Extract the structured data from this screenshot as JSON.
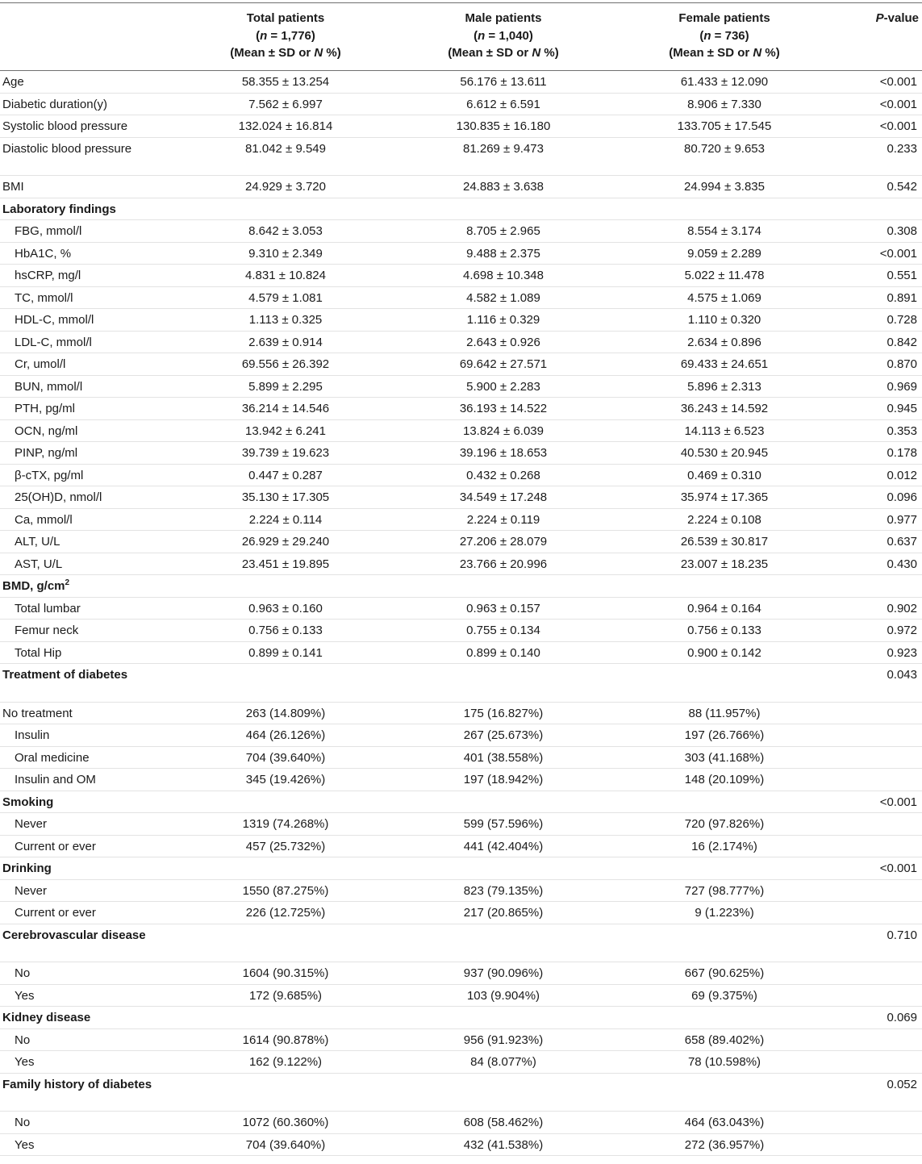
{
  "header": {
    "col0": "",
    "total": {
      "title": "Total patients",
      "n_prefix": "n",
      "n_value": " = 1,776)",
      "stat": "(Mean ± SD or ",
      "stat_n": "N",
      "stat_end": " %)"
    },
    "male": {
      "title": "Male patients",
      "n_prefix": "n",
      "n_value": " = 1,040)",
      "stat": "(Mean ± SD or ",
      "stat_n": "N",
      "stat_end": " %)"
    },
    "female": {
      "title": "Female patients",
      "n_prefix": "n",
      "n_value": " = 736)",
      "stat": "(Mean ± SD or ",
      "stat_n": "N",
      "stat_end": " %)"
    },
    "p_italic": "P",
    "p_rest": "-value"
  },
  "rows": [
    {
      "label": "Age",
      "total": "58.355 ± 13.254",
      "male": "56.176 ± 13.611",
      "female": "61.433 ± 12.090",
      "p": "<0.001",
      "type": "plain",
      "h": 27.5
    },
    {
      "label": "Diabetic duration(y)",
      "total": "7.562 ± 6.997",
      "male": "6.612 ± 6.591",
      "female": "8.906 ± 7.330",
      "p": "<0.001",
      "type": "plain",
      "h": 27.5
    },
    {
      "label": "Systolic blood pressure",
      "total": "132.024 ± 16.814",
      "male": "130.835 ± 16.180",
      "female": "133.705 ± 17.545",
      "p": "<0.001",
      "type": "plain",
      "h": 27.5
    },
    {
      "label": "Diastolic blood pressure",
      "total": "81.042 ± 9.549",
      "male": "81.269 ± 9.473",
      "female": "80.720 ± 9.653",
      "p": "0.233",
      "type": "plain",
      "h": 47.5
    },
    {
      "label": "BMI",
      "total": "24.929 ± 3.720",
      "male": "24.883 ± 3.638",
      "female": "24.994 ± 3.835",
      "p": "0.542",
      "type": "plain",
      "h": 27.5
    },
    {
      "label": "Laboratory findings",
      "total": "",
      "male": "",
      "female": "",
      "p": "",
      "type": "section",
      "h": 27.5
    },
    {
      "label": "FBG, mmol/l",
      "total": "8.642 ± 3.053",
      "male": "8.705 ± 2.965",
      "female": "8.554 ± 3.174",
      "p": "0.308",
      "type": "sub",
      "h": 27.5
    },
    {
      "label": "HbA1C, %",
      "total": "9.310 ± 2.349",
      "male": "9.488 ± 2.375",
      "female": "9.059 ± 2.289",
      "p": "<0.001",
      "type": "sub",
      "h": 27.5
    },
    {
      "label": "hsCRP, mg/l",
      "total": "4.831 ± 10.824",
      "male": "4.698 ± 10.348",
      "female": "5.022 ± 11.478",
      "p": "0.551",
      "type": "sub",
      "h": 27.5
    },
    {
      "label": "TC, mmol/l",
      "total": "4.579 ± 1.081",
      "male": "4.582 ± 1.089",
      "female": "4.575 ± 1.069",
      "p": "0.891",
      "type": "sub",
      "h": 27.5
    },
    {
      "label": "HDL-C, mmol/l",
      "total": "1.113 ± 0.325",
      "male": "1.116 ± 0.329",
      "female": "1.110 ± 0.320",
      "p": "0.728",
      "type": "sub",
      "h": 27.5
    },
    {
      "label": "LDL-C, mmol/l",
      "total": "2.639 ± 0.914",
      "male": "2.643 ± 0.926",
      "female": "2.634 ± 0.896",
      "p": "0.842",
      "type": "sub",
      "h": 27.5
    },
    {
      "label": "Cr, umol/l",
      "total": "69.556 ± 26.392",
      "male": "69.642 ± 27.571",
      "female": "69.433 ± 24.651",
      "p": "0.870",
      "type": "sub",
      "h": 27.5
    },
    {
      "label": "BUN, mmol/l",
      "total": "5.899 ± 2.295",
      "male": "5.900 ± 2.283",
      "female": "5.896 ± 2.313",
      "p": "0.969",
      "type": "sub",
      "h": 27.5
    },
    {
      "label": "PTH, pg/ml",
      "total": "36.214 ± 14.546",
      "male": "36.193 ± 14.522",
      "female": "36.243 ± 14.592",
      "p": "0.945",
      "type": "sub",
      "h": 27.5
    },
    {
      "label": "OCN, ng/ml",
      "total": "13.942 ± 6.241",
      "male": "13.824 ± 6.039",
      "female": "14.113 ± 6.523",
      "p": "0.353",
      "type": "sub",
      "h": 27.5
    },
    {
      "label": "PINP, ng/ml",
      "total": "39.739 ± 19.623",
      "male": "39.196 ± 18.653",
      "female": "40.530 ± 20.945",
      "p": "0.178",
      "type": "sub",
      "h": 27.5
    },
    {
      "label": "β-cTX, pg/ml",
      "total": "0.447 ± 0.287",
      "male": "0.432 ± 0.268",
      "female": "0.469 ± 0.310",
      "p": "0.012",
      "type": "sub",
      "h": 27.5
    },
    {
      "label": "25(OH)D, nmol/l",
      "total": "35.130 ± 17.305",
      "male": "34.549 ± 17.248",
      "female": "35.974 ± 17.365",
      "p": "0.096",
      "type": "sub",
      "h": 27.5
    },
    {
      "label": "Ca, mmol/l",
      "total": "2.224 ± 0.114",
      "male": "2.224 ± 0.119",
      "female": "2.224 ± 0.108",
      "p": "0.977",
      "type": "sub",
      "h": 27.5
    },
    {
      "label": "ALT, U/L",
      "total": "26.929 ± 29.240",
      "male": "27.206 ± 28.079",
      "female": "26.539 ± 30.817",
      "p": "0.637",
      "type": "sub",
      "h": 27.5
    },
    {
      "label": "AST, U/L",
      "total": "23.451 ± 19.895",
      "male": "23.766 ± 20.996",
      "female": "23.007 ± 18.235",
      "p": "0.430",
      "type": "sub",
      "h": 27.5
    },
    {
      "label": "BMD, g/cm",
      "sup": "2",
      "total": "",
      "male": "",
      "female": "",
      "p": "",
      "type": "section",
      "h": 27.5
    },
    {
      "label": "Total lumbar",
      "total": "0.963 ± 0.160",
      "male": "0.963 ± 0.157",
      "female": "0.964 ± 0.164",
      "p": "0.902",
      "type": "sub",
      "h": 27.5
    },
    {
      "label": "Femur neck",
      "total": "0.756 ± 0.133",
      "male": "0.755 ± 0.134",
      "female": "0.756 ± 0.133",
      "p": "0.972",
      "type": "sub",
      "h": 27.5
    },
    {
      "label": "Total Hip",
      "total": "0.899 ± 0.141",
      "male": "0.899 ± 0.140",
      "female": "0.900 ± 0.142",
      "p": "0.923",
      "type": "sub",
      "h": 27.5
    },
    {
      "label": "Treatment of diabetes",
      "total": "",
      "male": "",
      "female": "",
      "p": "0.043",
      "type": "section",
      "h": 47.5
    },
    {
      "label": "No treatment",
      "total": "263 (14.809%)",
      "male": "175 (16.827%)",
      "female": "88 (11.957%)",
      "p": "",
      "type": "plain",
      "h": 27.5
    },
    {
      "label": "Insulin",
      "total": "464 (26.126%)",
      "male": "267 (25.673%)",
      "female": "197 (26.766%)",
      "p": "",
      "type": "sub",
      "h": 27.5
    },
    {
      "label": "Oral medicine",
      "total": "704 (39.640%)",
      "male": "401 (38.558%)",
      "female": "303 (41.168%)",
      "p": "",
      "type": "sub",
      "h": 27.5
    },
    {
      "label": "Insulin and OM",
      "total": "345 (19.426%)",
      "male": "197 (18.942%)",
      "female": "148 (20.109%)",
      "p": "",
      "type": "sub",
      "h": 27.5
    },
    {
      "label": "Smoking",
      "total": "",
      "male": "",
      "female": "",
      "p": "<0.001",
      "type": "section",
      "h": 27.5
    },
    {
      "label": "Never",
      "total": "1319 (74.268%)",
      "male": "599 (57.596%)",
      "female": "720 (97.826%)",
      "p": "",
      "type": "sub",
      "h": 27.5
    },
    {
      "label": "Current or ever",
      "total": "457 (25.732%)",
      "male": "441 (42.404%)",
      "female": "16 (2.174%)",
      "p": "",
      "type": "sub",
      "h": 27.5
    },
    {
      "label": "Drinking",
      "total": "",
      "male": "",
      "female": "",
      "p": "<0.001",
      "type": "section",
      "h": 27.5
    },
    {
      "label": "Never",
      "total": "1550 (87.275%)",
      "male": "823 (79.135%)",
      "female": "727 (98.777%)",
      "p": "",
      "type": "sub",
      "h": 27.5
    },
    {
      "label": "Current or ever",
      "total": "226 (12.725%)",
      "male": "217 (20.865%)",
      "female": "9 (1.223%)",
      "p": "",
      "type": "sub",
      "h": 27.5
    },
    {
      "label": "Cerebrovascular disease",
      "total": "",
      "male": "",
      "female": "",
      "p": "0.710",
      "type": "section",
      "h": 47.5
    },
    {
      "label": "No",
      "total": "1604 (90.315%)",
      "male": "937 (90.096%)",
      "female": "667 (90.625%)",
      "p": "",
      "type": "sub",
      "h": 27.5
    },
    {
      "label": "Yes",
      "total": "172 (9.685%)",
      "male": "103 (9.904%)",
      "female": "69 (9.375%)",
      "p": "",
      "type": "sub",
      "h": 27.5
    },
    {
      "label": "Kidney disease",
      "total": "",
      "male": "",
      "female": "",
      "p": "0.069",
      "type": "section",
      "h": 27.5
    },
    {
      "label": "No",
      "total": "1614 (90.878%)",
      "male": "956 (91.923%)",
      "female": "658 (89.402%)",
      "p": "",
      "type": "sub",
      "h": 27.5
    },
    {
      "label": "Yes",
      "total": "162 (9.122%)",
      "male": "84 (8.077%)",
      "female": "78 (10.598%)",
      "p": "",
      "type": "sub",
      "h": 27.5
    },
    {
      "label": "Family history of diabetes",
      "total": "",
      "male": "",
      "female": "",
      "p": "0.052",
      "type": "section",
      "h": 47.5
    },
    {
      "label": "No",
      "total": "1072 (60.360%)",
      "male": "608 (58.462%)",
      "female": "464 (63.043%)",
      "p": "",
      "type": "sub",
      "h": 27.5
    },
    {
      "label": "Yes",
      "total": "704 (39.640%)",
      "male": "432 (41.538%)",
      "female": "272 (36.957%)",
      "p": "",
      "type": "sub",
      "h": 27.5
    }
  ]
}
